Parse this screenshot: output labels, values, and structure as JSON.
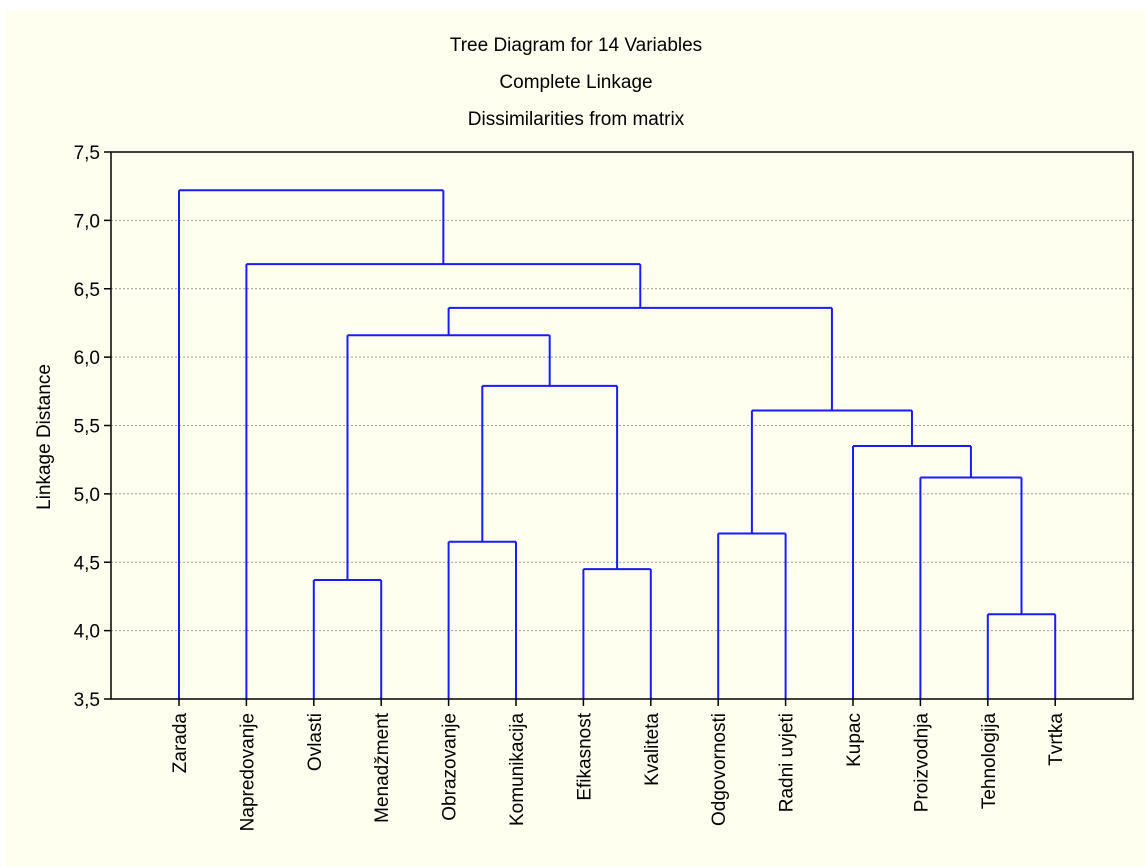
{
  "chart_data": {
    "type": "dendrogram",
    "title_lines": [
      "Tree Diagram for 14  Variables",
      "Complete Linkage",
      "Dissimilarities from matrix"
    ],
    "ylabel": "Linkage Distance",
    "ylim": [
      3.5,
      7.5
    ],
    "yticks": [
      "3,5",
      "4,0",
      "4,5",
      "5,0",
      "5,5",
      "6,0",
      "6,5",
      "7,0",
      "7,5"
    ],
    "ytick_values": [
      3.5,
      4.0,
      4.5,
      5.0,
      5.5,
      6.0,
      6.5,
      7.0,
      7.5
    ],
    "grid": true,
    "leaves": [
      "Zarada",
      "Napredovanje",
      "Ovlasti",
      "Menadžment",
      "Obrazovanje",
      "Komunikacija",
      "Efikasnost",
      "Kvaliteta",
      "Odgovornosti",
      "Radni uvjeti",
      "Kupac",
      "Proizvodnja",
      "Tehnologija",
      "Tvrtka"
    ],
    "merges": [
      {
        "left": "Tehnologija",
        "right": "Tvrtka",
        "height": 4.12
      },
      {
        "left": "Ovlasti",
        "right": "Menadžment",
        "height": 4.37
      },
      {
        "left": "Efikasnost",
        "right": "Kvaliteta",
        "height": 4.45
      },
      {
        "left": "Obrazovanje",
        "right": "Komunikacija",
        "height": 4.65
      },
      {
        "left": "Odgovornosti",
        "right": "Radni uvjeti",
        "height": 4.71
      },
      {
        "left": "Proizvodnja",
        "right": "Tehnologija+Tvrtka",
        "height": 5.12
      },
      {
        "left": "Kupac",
        "right": "Proizvodnja+Tehnologija+Tvrtka",
        "height": 5.35
      },
      {
        "left": "Odgovornosti+Radni uvjeti",
        "right": "Kupac+Proizvodnja+Tehnologija+Tvrtka",
        "height": 5.61
      },
      {
        "left": "Obrazovanje+Komunikacija",
        "right": "Efikasnost+Kvaliteta",
        "height": 5.79
      },
      {
        "left": "Ovlasti+Menadžment",
        "right": "Obrazovanje+Komunikacija+Efikasnost+Kvaliteta",
        "height": 6.16
      },
      {
        "left": "Ovlasti..Kvaliteta",
        "right": "Odgovornosti..Tvrtka",
        "height": 6.36
      },
      {
        "left": "Napredovanje",
        "right": "Ovlasti..Tvrtka",
        "height": 6.68
      },
      {
        "left": "Zarada",
        "right": "Napredovanje..Tvrtka",
        "height": 7.22
      }
    ]
  },
  "colors": {
    "link": "#1a1aff",
    "background": "#fffff0",
    "grid": "#9a9a9a"
  }
}
